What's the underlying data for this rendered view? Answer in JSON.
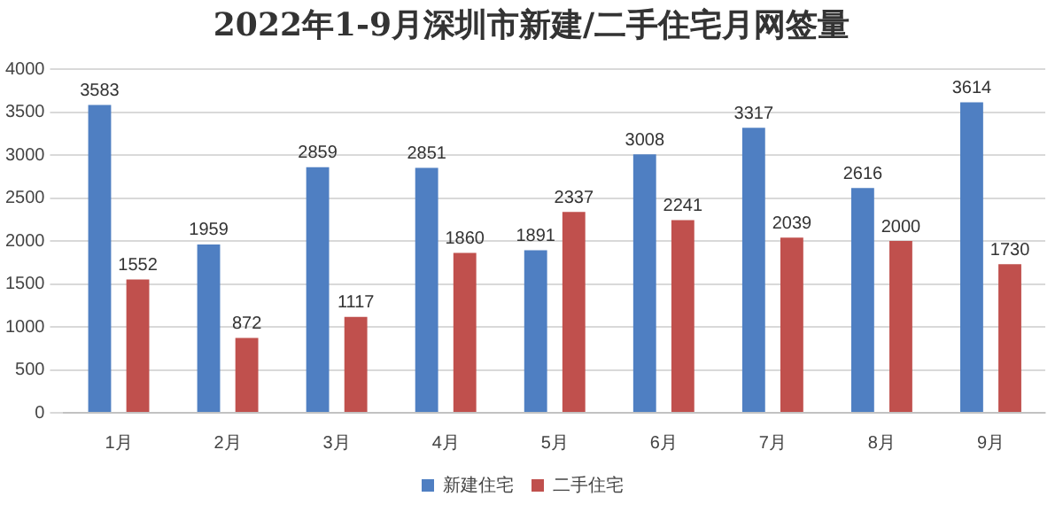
{
  "chart_data": {
    "type": "bar",
    "title": "2022年1-9月深圳市新建/二手住宅月网签量",
    "categories": [
      "1月",
      "2月",
      "3月",
      "4月",
      "5月",
      "6月",
      "7月",
      "8月",
      "9月"
    ],
    "series": [
      {
        "name": "新建住宅",
        "color": "#4f7fc2",
        "values": [
          3583,
          1959,
          2859,
          2851,
          1891,
          3008,
          3317,
          2616,
          3614
        ]
      },
      {
        "name": "二手住宅",
        "color": "#c0504d",
        "values": [
          1552,
          872,
          1117,
          1860,
          2337,
          2241,
          2039,
          2000,
          1730
        ]
      }
    ],
    "ylim": [
      0,
      4000
    ],
    "yticks": [
      0,
      500,
      1000,
      1500,
      2000,
      2500,
      3000,
      3500,
      4000
    ],
    "grid": "y",
    "legend": "bottom",
    "data_labels": true
  }
}
